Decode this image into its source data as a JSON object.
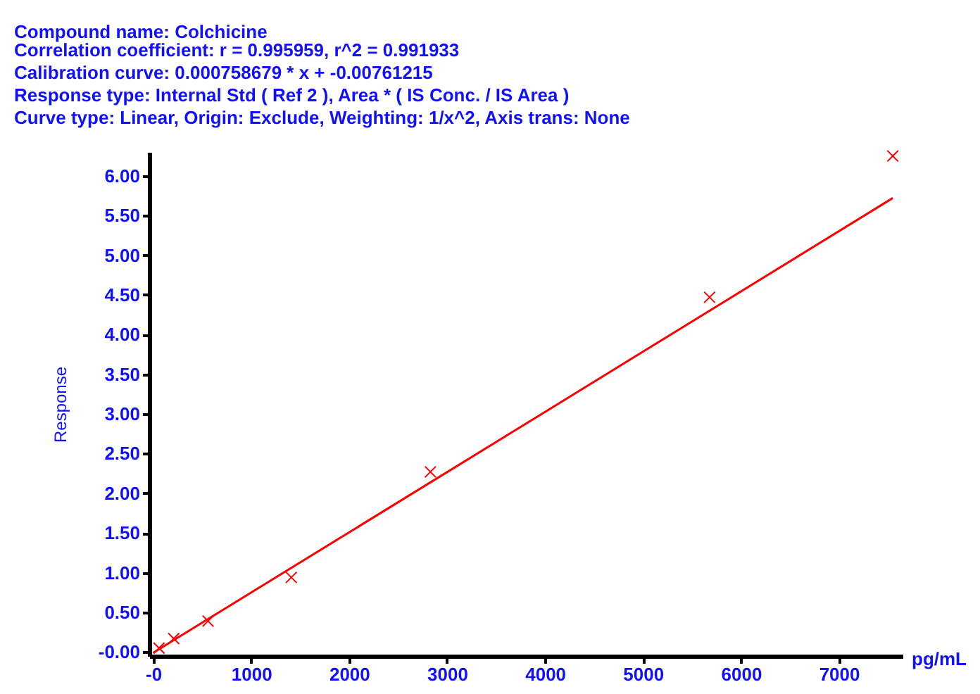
{
  "chart_data": {
    "type": "scatter",
    "title": "Compound name: Colchicine",
    "annotations": [
      "Correlation coefficient: r = 0.995959, r^2 = 0.991933",
      "Calibration curve: 0.000758679 * x + -0.00761215",
      "Response type: Internal Std ( Ref 2 ), Area * ( IS Conc. / IS Area )",
      "Curve type: Linear, Origin: Exclude, Weighting: 1/x^2, Axis trans: None"
    ],
    "xlabel": "pg/mL",
    "ylabel": "Response",
    "xlim": [
      -40,
      7650
    ],
    "ylim": [
      -0.05,
      6.3
    ],
    "xticks": [
      {
        "value": 0,
        "label": "-0"
      },
      1000,
      2000,
      3000,
      4000,
      5000,
      6000,
      7000
    ],
    "yticks": [
      {
        "value": 0,
        "label": "-0.00"
      },
      {
        "value": 0.5,
        "label": "0.50"
      },
      {
        "value": 1,
        "label": "1.00"
      },
      {
        "value": 1.5,
        "label": "1.50"
      },
      {
        "value": 2,
        "label": "2.00"
      },
      {
        "value": 2.5,
        "label": "2.50"
      },
      {
        "value": 3,
        "label": "3.00"
      },
      {
        "value": 3.5,
        "label": "3.50"
      },
      {
        "value": 4,
        "label": "4.00"
      },
      {
        "value": 4.5,
        "label": "4.50"
      },
      {
        "value": 5,
        "label": "5.00"
      },
      {
        "value": 5.5,
        "label": "5.50"
      },
      {
        "value": 6,
        "label": "6.00"
      }
    ],
    "grid": false,
    "series": [
      {
        "marker": "cross",
        "color": "#ff0000",
        "x": [
          60,
          210,
          560,
          1410,
          2830,
          5680,
          7550
        ],
        "values": [
          0.05,
          0.17,
          0.39,
          0.94,
          2.27,
          4.47,
          6.25
        ]
      },
      {
        "type": "line",
        "color": "#ff0000",
        "x": [
          0,
          7550
        ],
        "values": [
          -0.01,
          5.72
        ]
      }
    ]
  }
}
